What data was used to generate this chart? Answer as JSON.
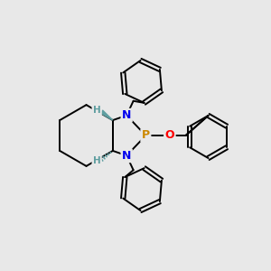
{
  "background_color": "#e8e8e8",
  "atom_colors": {
    "N": "#0000ee",
    "P": "#cc8800",
    "O": "#ff0000",
    "C": "#000000",
    "H_stereo": "#5f9ea0"
  },
  "bond_color": "#000000",
  "bond_lw": 1.4,
  "figsize": [
    3.0,
    3.0
  ],
  "dpi": 100,
  "xlim": [
    0,
    10
  ],
  "ylim": [
    0,
    10
  ]
}
